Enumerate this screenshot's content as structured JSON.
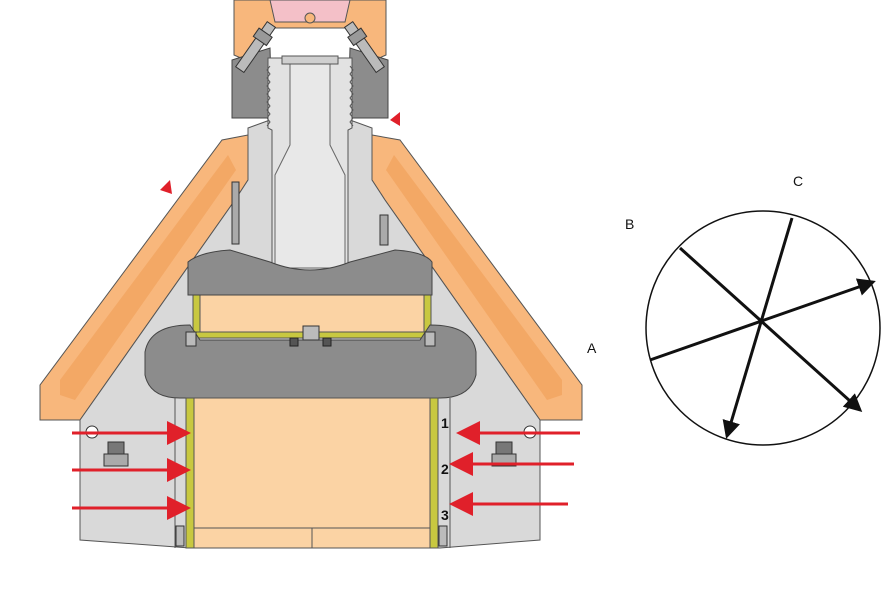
{
  "labels": {
    "a": "A",
    "b": "B",
    "c": "C",
    "n1": "1",
    "n2": "2",
    "n3": "3"
  },
  "colors": {
    "orange": "#F8B77C",
    "orange_dark": "#D08A4A",
    "tan": "#FBD3A4",
    "gray": "#D9D9D9",
    "dark_gray": "#8C8C8C",
    "yellow": "#C8C840",
    "red": "#E0202A",
    "pink": "#F4C0C8",
    "black": "#111111"
  },
  "icons": [
    "force-arrow-icon",
    "direction-arrow-icon",
    "bolt-icon"
  ]
}
